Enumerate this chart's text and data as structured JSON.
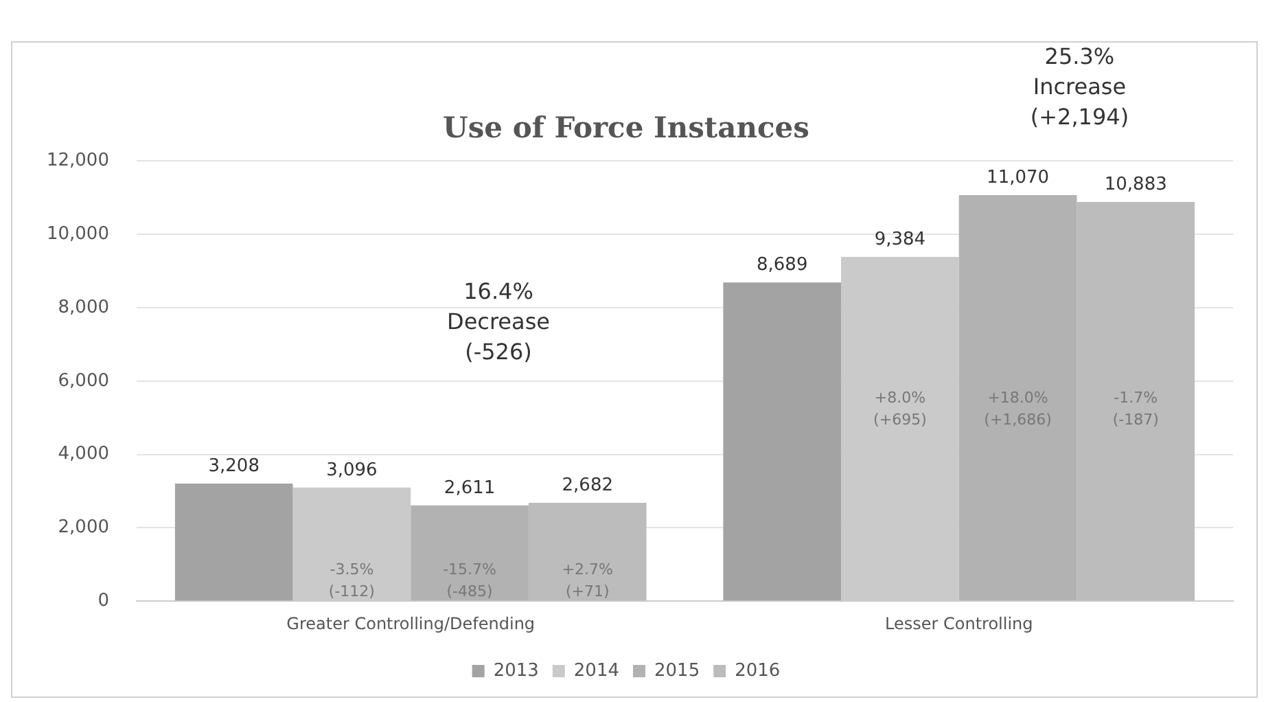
{
  "chart_data": {
    "type": "bar",
    "title": "Use of Force Instances",
    "categories": [
      "Greater Controlling/Defending",
      "Lesser Controlling"
    ],
    "series": [
      {
        "name": "2013",
        "color": "#a3a3a3",
        "values": [
          3208,
          8689
        ],
        "value_labels": [
          "3,208",
          "8,689"
        ]
      },
      {
        "name": "2014",
        "color": "#cacaca",
        "values": [
          3096,
          9384
        ],
        "value_labels": [
          "3,096",
          "9,384"
        ]
      },
      {
        "name": "2015",
        "color": "#b2b2b2",
        "values": [
          2611,
          11070
        ],
        "value_labels": [
          "2,611",
          "11,070"
        ]
      },
      {
        "name": "2016",
        "color": "#bcbcbc",
        "values": [
          2682,
          10883
        ],
        "value_labels": [
          "2,682",
          "10,883"
        ]
      }
    ],
    "ylim": [
      0,
      12000
    ],
    "yticks": [
      0,
      {
        "value": 2000,
        "label": "2,000"
      },
      {
        "value": 4000,
        "label": "4,000"
      },
      {
        "value": 6000,
        "label": "6,000"
      },
      {
        "value": 8000,
        "label": "8,000"
      },
      {
        "value": 10000,
        "label": "10,000"
      },
      {
        "value": 12000,
        "label": "12,000"
      }
    ],
    "grid": "y",
    "legend": "bottom",
    "annotations": [
      "16.4%\nDecrease\n(-526)",
      "25.3%\nIncrease\n(+2,194)",
      "-3.5%\n(-112)",
      "-15.7%\n(-485)",
      "+2.7%\n(+71)",
      "+8.0%\n(+695)",
      "+18.0%\n(+1,686)",
      "-1.7%\n(-187)"
    ]
  }
}
